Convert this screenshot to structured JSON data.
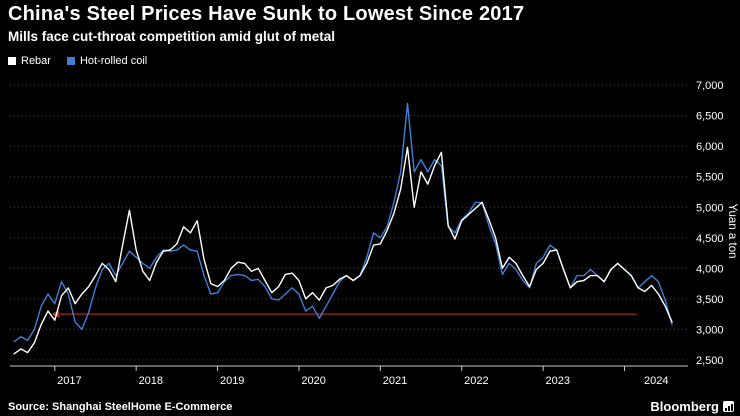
{
  "header": {
    "title": "China's Steel Prices Have Sunk to Lowest Since 2017",
    "subtitle": "Mills face cut-throat competition amid glut of metal"
  },
  "legend": [
    {
      "label": "Rebar",
      "color": "#ffffff"
    },
    {
      "label": "Hot-rolled coil",
      "color": "#3f7fd6"
    }
  ],
  "footer": {
    "source": "Source: Shanghai SteelHome E-Commerce",
    "brand": "Bloomberg"
  },
  "colors": {
    "background": "#000000",
    "grid": "#444444",
    "axis": "#cccccc",
    "tick_text": "#ffffff",
    "annotation": "#c4362a"
  },
  "chart_data": {
    "type": "line",
    "title": "China's Steel Prices Have Sunk to Lowest Since 2017",
    "subtitle": "Mills face cut-throat competition amid glut of metal",
    "ylabel": "Yuan a ton",
    "xlabel": "",
    "grid": "horizontal-dotted",
    "legend_position": "top-left",
    "xlim": [
      2016.45,
      2024.78
    ],
    "ylim": [
      2400,
      7150
    ],
    "yticks": [
      2500,
      3000,
      3500,
      4000,
      4500,
      5000,
      5500,
      6000,
      6500,
      7000
    ],
    "xticks": [
      2017,
      2018,
      2019,
      2020,
      2021,
      2022,
      2023,
      2024
    ],
    "x_start": 2016.5,
    "x_step": 0.0833333,
    "series": [
      {
        "name": "Rebar",
        "color": "#ffffff",
        "values": [
          2600,
          2680,
          2620,
          2780,
          3080,
          3300,
          3150,
          3550,
          3680,
          3420,
          3580,
          3700,
          3880,
          4080,
          3980,
          3780,
          4380,
          4950,
          4300,
          3950,
          3800,
          4100,
          4280,
          4300,
          4400,
          4680,
          4580,
          4780,
          4150,
          3750,
          3700,
          3800,
          4000,
          4100,
          4080,
          3950,
          4000,
          3800,
          3600,
          3700,
          3900,
          3920,
          3800,
          3500,
          3600,
          3480,
          3680,
          3720,
          3820,
          3880,
          3800,
          3880,
          4080,
          4380,
          4400,
          4620,
          4900,
          5300,
          5980,
          5000,
          5580,
          5380,
          5680,
          5900,
          4700,
          4480,
          4780,
          4880,
          4980,
          5080,
          4800,
          4500,
          4000,
          4180,
          4080,
          3880,
          3700,
          3980,
          4080,
          4280,
          4300,
          3980,
          3680,
          3780,
          3800,
          3880,
          3880,
          3780,
          3980,
          4080,
          3980,
          3880,
          3680,
          3620,
          3720,
          3580,
          3380,
          3120
        ]
      },
      {
        "name": "Hot-rolled coil",
        "color": "#3f7fd6",
        "values": [
          2800,
          2880,
          2820,
          3000,
          3380,
          3580,
          3420,
          3780,
          3580,
          3120,
          3000,
          3280,
          3680,
          3980,
          4080,
          3880,
          4080,
          4280,
          4180,
          4080,
          4000,
          4180,
          4300,
          4280,
          4300,
          4380,
          4300,
          4280,
          3880,
          3580,
          3600,
          3780,
          3880,
          3900,
          3880,
          3800,
          3820,
          3700,
          3500,
          3480,
          3580,
          3680,
          3580,
          3300,
          3380,
          3180,
          3380,
          3580,
          3780,
          3880,
          3800,
          3880,
          4180,
          4580,
          4500,
          4680,
          5080,
          5580,
          6700,
          5580,
          5780,
          5580,
          5780,
          5680,
          4680,
          4580,
          4800,
          4900,
          5080,
          5080,
          4700,
          4400,
          3900,
          4080,
          3980,
          3800,
          3680,
          4080,
          4180,
          4380,
          4300,
          3980,
          3680,
          3880,
          3880,
          3980,
          3880,
          3780,
          3980,
          4080,
          3980,
          3880,
          3680,
          3780,
          3880,
          3780,
          3480,
          3080
        ]
      }
    ],
    "annotation_line": {
      "y": 3250,
      "x_from": 2017.05,
      "x_to": 2024.15,
      "color": "#c4362a",
      "arrowhead": "left"
    }
  }
}
